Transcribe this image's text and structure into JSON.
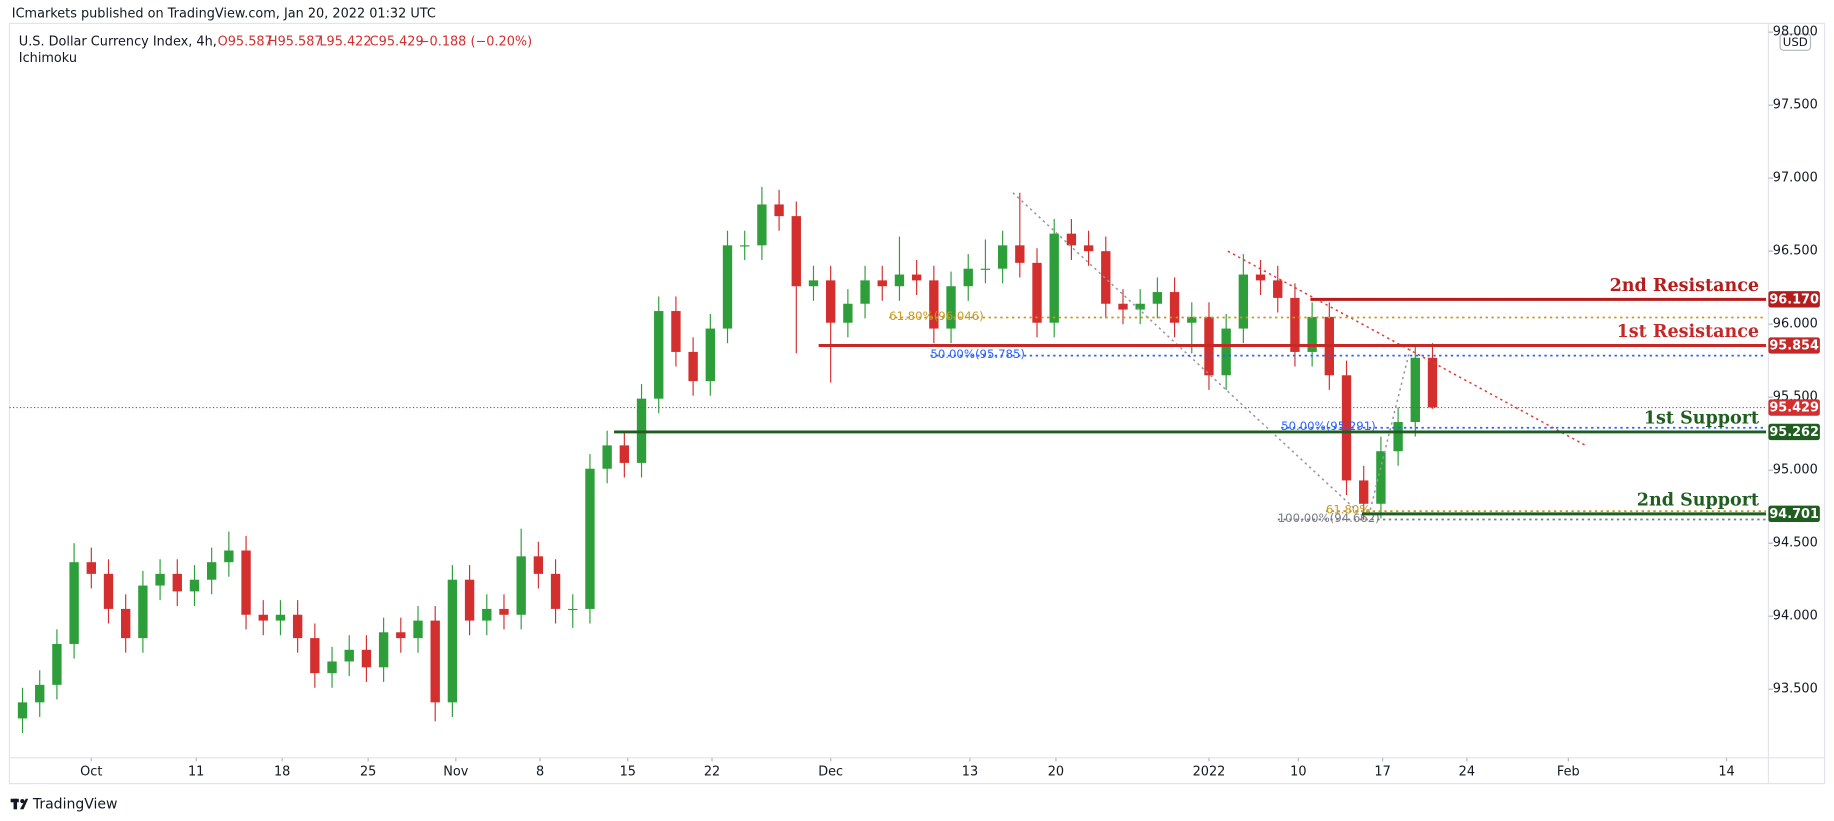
{
  "header": {
    "published": "ICmarkets published on TradingView.com, Jan 20, 2022 01:32 UTC",
    "symbol": "U.S. Dollar Currency Index, 4h,",
    "ohlc": [
      "O95.587",
      "H95.587",
      "L95.422",
      "C95.429",
      "−0.188 (−0.20%)"
    ],
    "indicator": "Ichimoku",
    "currency": "USD"
  },
  "footer": {
    "brand": "TradingView"
  },
  "chart_data": {
    "type": "candlestick",
    "x": [
      -4,
      -3,
      -2,
      -1,
      0,
      1,
      2,
      3,
      4,
      5,
      6,
      7,
      8,
      9,
      10,
      11,
      12,
      13,
      14,
      15,
      16,
      17,
      18,
      19,
      20,
      21,
      22,
      23,
      24,
      25,
      26,
      27,
      28,
      29,
      30,
      31,
      32,
      33,
      34,
      35,
      36,
      37,
      38,
      39,
      40,
      41,
      42,
      43,
      44,
      45,
      46,
      47,
      48,
      49,
      50,
      51,
      52,
      53,
      54,
      55,
      56,
      57,
      58,
      59,
      60,
      61,
      62,
      63,
      64,
      65,
      66,
      67,
      68,
      69,
      70,
      71,
      72,
      73,
      74,
      75,
      76,
      77,
      78
    ],
    "open": [
      93.3,
      93.41,
      93.53,
      93.81,
      94.37,
      94.29,
      94.05,
      93.85,
      94.21,
      94.29,
      94.17,
      94.25,
      94.37,
      94.45,
      94.01,
      93.97,
      94.01,
      93.85,
      93.61,
      93.69,
      93.77,
      93.65,
      93.89,
      93.85,
      93.97,
      93.41,
      94.25,
      93.97,
      94.05,
      94.01,
      94.41,
      94.29,
      94.05,
      94.05,
      95.01,
      95.17,
      95.05,
      95.49,
      96.09,
      95.81,
      95.61,
      95.97,
      96.54,
      96.54,
      96.82,
      96.74,
      96.26,
      96.3,
      96.01,
      96.14,
      96.3,
      96.26,
      96.34,
      96.3,
      95.97,
      96.26,
      96.38,
      96.38,
      96.54,
      96.42,
      96.01,
      96.62,
      96.54,
      96.5,
      96.14,
      96.1,
      96.14,
      96.22,
      96.01,
      96.05,
      95.65,
      95.97,
      96.34,
      96.3,
      96.18,
      95.81,
      96.05,
      95.65,
      94.93,
      94.77,
      95.13,
      95.33,
      95.77
    ],
    "high": [
      93.51,
      93.63,
      93.91,
      94.5,
      94.47,
      94.39,
      94.15,
      94.31,
      94.39,
      94.39,
      94.35,
      94.47,
      94.58,
      94.55,
      94.11,
      94.11,
      94.11,
      93.95,
      93.79,
      93.87,
      93.87,
      93.99,
      93.99,
      94.07,
      94.07,
      94.35,
      94.35,
      94.15,
      94.15,
      94.6,
      94.51,
      94.39,
      94.15,
      95.11,
      95.27,
      95.27,
      95.59,
      96.19,
      96.19,
      95.91,
      96.07,
      96.64,
      96.64,
      96.94,
      96.92,
      96.84,
      96.4,
      96.4,
      96.24,
      96.4,
      96.4,
      96.6,
      96.44,
      96.4,
      96.36,
      96.48,
      96.58,
      96.64,
      96.9,
      96.52,
      96.72,
      96.72,
      96.64,
      96.6,
      96.24,
      96.24,
      96.32,
      96.32,
      96.15,
      96.15,
      96.07,
      96.48,
      96.44,
      96.4,
      96.28,
      96.15,
      96.15,
      95.75,
      95.03,
      95.23,
      95.43,
      95.85,
      95.87
    ],
    "low": [
      93.2,
      93.31,
      93.43,
      93.71,
      94.19,
      93.95,
      93.75,
      93.75,
      94.11,
      94.07,
      94.07,
      94.15,
      94.27,
      93.91,
      93.87,
      93.87,
      93.75,
      93.51,
      93.51,
      93.59,
      93.55,
      93.55,
      93.75,
      93.75,
      93.28,
      93.31,
      93.87,
      93.87,
      93.91,
      93.91,
      94.19,
      93.95,
      93.92,
      93.95,
      94.91,
      94.95,
      94.95,
      95.39,
      95.71,
      95.51,
      95.51,
      95.87,
      96.44,
      96.44,
      96.64,
      95.8,
      96.16,
      95.6,
      95.91,
      96.04,
      96.16,
      96.16,
      96.2,
      95.87,
      95.87,
      96.16,
      96.28,
      96.28,
      96.32,
      95.91,
      95.91,
      96.44,
      96.4,
      96.04,
      96.0,
      96.0,
      96.04,
      95.91,
      95.8,
      95.55,
      95.55,
      95.87,
      96.2,
      96.08,
      95.71,
      95.71,
      95.55,
      94.83,
      94.66,
      94.67,
      95.03,
      95.23,
      95.42
    ],
    "close": [
      93.41,
      93.53,
      93.81,
      94.37,
      94.29,
      94.05,
      93.85,
      94.21,
      94.29,
      94.17,
      94.25,
      94.37,
      94.45,
      94.01,
      93.97,
      94.01,
      93.85,
      93.61,
      93.69,
      93.77,
      93.65,
      93.89,
      93.85,
      93.97,
      93.41,
      94.25,
      93.97,
      94.05,
      94.01,
      94.41,
      94.29,
      94.05,
      94.05,
      95.01,
      95.17,
      95.05,
      95.49,
      96.09,
      95.81,
      95.61,
      95.97,
      96.54,
      96.54,
      96.82,
      96.74,
      96.26,
      96.3,
      96.01,
      96.14,
      96.3,
      96.26,
      96.34,
      96.3,
      95.97,
      96.26,
      96.38,
      96.38,
      96.54,
      96.42,
      96.01,
      96.62,
      96.54,
      96.5,
      96.14,
      96.1,
      96.14,
      96.22,
      96.01,
      96.05,
      95.65,
      95.97,
      96.34,
      96.3,
      96.18,
      95.81,
      96.05,
      95.65,
      94.93,
      94.77,
      95.13,
      95.33,
      95.77,
      95.43
    ],
    "up_color": "#2e9e3a",
    "down_color": "#d32f2f",
    "xlim": [
      -4.76,
      97.4
    ],
    "ylim": [
      93.03,
      98.06
    ],
    "xticks": [
      {
        "value": 0,
        "label": "Oct"
      },
      {
        "value": 6.1,
        "label": "11"
      },
      {
        "value": 11.1,
        "label": "18"
      },
      {
        "value": 16.1,
        "label": "25"
      },
      {
        "value": 21.2,
        "label": "Nov"
      },
      {
        "value": 26.1,
        "label": "8"
      },
      {
        "value": 31.2,
        "label": "15"
      },
      {
        "value": 36.1,
        "label": "22"
      },
      {
        "value": 43,
        "label": "Dec"
      },
      {
        "value": 51.1,
        "label": "13"
      },
      {
        "value": 56.1,
        "label": "20"
      },
      {
        "value": 65,
        "label": "2022"
      },
      {
        "value": 70.2,
        "label": "10"
      },
      {
        "value": 75.1,
        "label": "17"
      },
      {
        "value": 80,
        "label": "24"
      },
      {
        "value": 85.9,
        "label": "Feb"
      },
      {
        "value": 95.1,
        "label": "14"
      }
    ],
    "yticks": [
      {
        "value": 93.5,
        "label": "93.500"
      },
      {
        "value": 94,
        "label": "94.000"
      },
      {
        "value": 94.5,
        "label": "94.500"
      },
      {
        "value": 95,
        "label": "95.000"
      },
      {
        "value": 95.5,
        "label": "95.500"
      },
      {
        "value": 96,
        "label": "96.000"
      },
      {
        "value": 96.5,
        "label": "96.500"
      },
      {
        "value": 97,
        "label": "97.000"
      },
      {
        "value": 97.5,
        "label": "97.500"
      },
      {
        "value": 98,
        "label": "98.000"
      }
    ],
    "last_price": {
      "value": 95.429,
      "label": "95.429",
      "color": "#d32f2f"
    },
    "levels": [
      {
        "name": "2nd Resistance",
        "value": 96.17,
        "label": "96.170",
        "color": "#b71c1c",
        "start_x": 70.9
      },
      {
        "name": "1st Resistance",
        "value": 95.854,
        "label": "95.854",
        "color": "#c62828",
        "start_x": 42.3
      },
      {
        "name": "1st Support",
        "value": 95.262,
        "label": "95.262",
        "color": "#1f5e1f",
        "start_x": 30.4
      },
      {
        "name": "2nd Support",
        "value": 94.701,
        "label": "94.701",
        "color": "#1f5e1f",
        "start_x": 73.9
      }
    ],
    "fib_levels": [
      {
        "label": "61.80%(96.046)",
        "value": 96.046,
        "color": "#c8991c",
        "start_x": 46.4
      },
      {
        "label": "50.00%(95.785)",
        "value": 95.785,
        "color": "#2962ff",
        "start_x": 48.8
      },
      {
        "label": "50.00%(95.291)",
        "value": 95.291,
        "color": "#2962ff",
        "start_x": 69.2
      },
      {
        "label": "61.80%",
        "value": 94.72,
        "color": "#c8991c",
        "start_x": 71.8
      },
      {
        "label": "100.00%(94.662)",
        "value": 94.662,
        "color": "#787b86",
        "start_x": 69.0
      }
    ],
    "trendlines": [
      {
        "color": "#e53935",
        "points": [
          [
            66.1,
            96.5
          ],
          [
            86.9,
            95.17
          ]
        ]
      },
      {
        "color": "#9598a1",
        "points": [
          [
            53.6,
            96.9
          ],
          [
            73.9,
            94.69
          ]
        ]
      },
      {
        "color": "#9598a1",
        "points": [
          [
            74.3,
            94.69
          ],
          [
            76.7,
            95.83
          ]
        ]
      }
    ]
  }
}
